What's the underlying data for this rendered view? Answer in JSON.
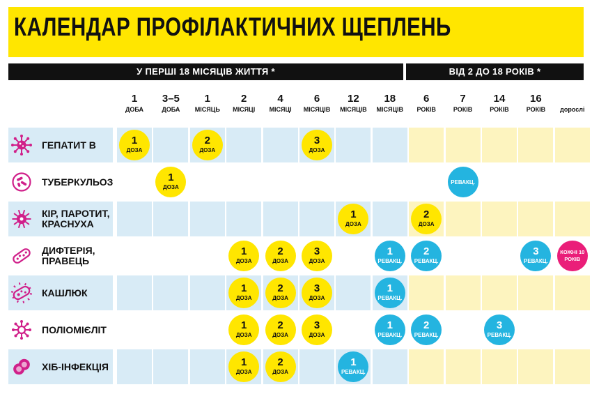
{
  "title": "КАЛЕНДАР ПРОФІЛАКТИЧНИХ ЩЕПЛЕНЬ",
  "bands": [
    {
      "label": "У ПЕРШІ 18 МІСЯЦІВ ЖИТТЯ *"
    },
    {
      "label": "ВІД 2 ДО 18 РОКІВ *"
    }
  ],
  "columns": [
    {
      "num": "1",
      "unit": "доба"
    },
    {
      "num": "3–5",
      "unit": "доба"
    },
    {
      "num": "1",
      "unit": "місяць"
    },
    {
      "num": "2",
      "unit": "місяці"
    },
    {
      "num": "4",
      "unit": "місяці"
    },
    {
      "num": "6",
      "unit": "місяців"
    },
    {
      "num": "12",
      "unit": "місяців"
    },
    {
      "num": "18",
      "unit": "місяців"
    },
    {
      "num": "6",
      "unit": "років"
    },
    {
      "num": "7",
      "unit": "років"
    },
    {
      "num": "14",
      "unit": "років"
    },
    {
      "num": "16",
      "unit": "років"
    },
    {
      "num": "",
      "unit": "дорослі"
    }
  ],
  "colors": {
    "accent_yellow": "#ffe600",
    "dose_yellow": "#ffe600",
    "revac_blue": "#24b4e0",
    "adult_pink": "#ea1e79",
    "cell_blue": "#d8ebf6",
    "cell_yellow": "#fdf4bf",
    "icon_magenta": "#d0208a"
  },
  "rows": [
    {
      "label": "ГЕПАТИТ В",
      "icon": "virus-icon",
      "shade": true,
      "doses": [
        {
          "col": 0,
          "kind": "dose",
          "n": "1",
          "t": "доза"
        },
        {
          "col": 2,
          "kind": "dose",
          "n": "2",
          "t": "доза"
        },
        {
          "col": 5,
          "kind": "dose",
          "n": "3",
          "t": "доза"
        }
      ]
    },
    {
      "label": "ТУБЕРКУЛЬОЗ",
      "icon": "bacteria-dish-icon",
      "shade": false,
      "doses": [
        {
          "col": 1,
          "kind": "dose",
          "n": "1",
          "t": "доза"
        },
        {
          "col": 9,
          "kind": "revac",
          "n": "",
          "t": "ревакц."
        }
      ]
    },
    {
      "label": "КІР, ПАРОТИТ,\nКРАСНУХА",
      "icon": "virus-spiky-icon",
      "shade": true,
      "doses": [
        {
          "col": 6,
          "kind": "dose",
          "n": "1",
          "t": "доза"
        },
        {
          "col": 8,
          "kind": "dose",
          "n": "2",
          "t": "доза"
        }
      ]
    },
    {
      "label": "ДИФТЕРІЯ,\nПРАВЕЦЬ",
      "icon": "bacillus-icon",
      "shade": false,
      "doses": [
        {
          "col": 3,
          "kind": "dose",
          "n": "1",
          "t": "доза"
        },
        {
          "col": 4,
          "kind": "dose",
          "n": "2",
          "t": "доза"
        },
        {
          "col": 5,
          "kind": "dose",
          "n": "3",
          "t": "доза"
        },
        {
          "col": 7,
          "kind": "revac",
          "n": "1",
          "t": "ревакц."
        },
        {
          "col": 8,
          "kind": "revac",
          "n": "2",
          "t": "ревакц."
        },
        {
          "col": 11,
          "kind": "revac",
          "n": "3",
          "t": "ревакц."
        },
        {
          "col": 12,
          "kind": "adult",
          "n": "",
          "t": "кожні 10 років"
        }
      ]
    },
    {
      "label": "КАШЛЮК",
      "icon": "bacterium-icon",
      "shade": true,
      "doses": [
        {
          "col": 3,
          "kind": "dose",
          "n": "1",
          "t": "доза"
        },
        {
          "col": 4,
          "kind": "dose",
          "n": "2",
          "t": "доза"
        },
        {
          "col": 5,
          "kind": "dose",
          "n": "3",
          "t": "доза"
        },
        {
          "col": 7,
          "kind": "revac",
          "n": "1",
          "t": "ревакц."
        }
      ]
    },
    {
      "label": "ПОЛІОМІЄЛІТ",
      "icon": "virus-cluster-icon",
      "shade": false,
      "doses": [
        {
          "col": 3,
          "kind": "dose",
          "n": "1",
          "t": "доза"
        },
        {
          "col": 4,
          "kind": "dose",
          "n": "2",
          "t": "доза"
        },
        {
          "col": 5,
          "kind": "dose",
          "n": "3",
          "t": "доза"
        },
        {
          "col": 7,
          "kind": "revac",
          "n": "1",
          "t": "ревакц."
        },
        {
          "col": 8,
          "kind": "revac",
          "n": "2",
          "t": "ревакц."
        },
        {
          "col": 10,
          "kind": "revac",
          "n": "3",
          "t": "ревакц."
        }
      ]
    },
    {
      "label": "ХІБ-ІНФЕКЦІЯ",
      "icon": "cell-pair-icon",
      "shade": true,
      "doses": [
        {
          "col": 3,
          "kind": "dose",
          "n": "1",
          "t": "доза"
        },
        {
          "col": 4,
          "kind": "dose",
          "n": "2",
          "t": "доза"
        },
        {
          "col": 6,
          "kind": "revac",
          "n": "1",
          "t": "ревакц."
        }
      ]
    }
  ]
}
